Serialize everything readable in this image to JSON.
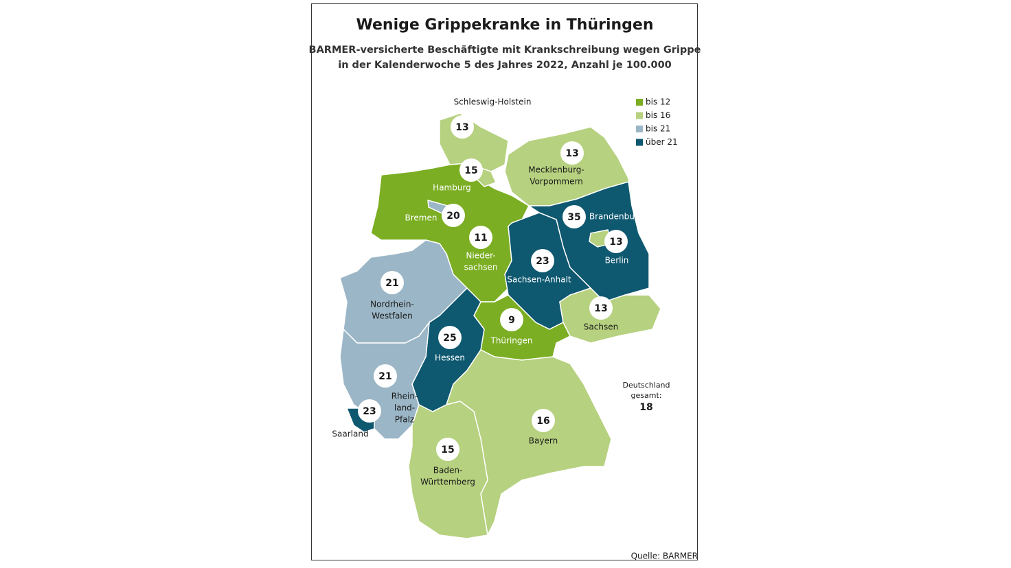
{
  "header": {
    "title": "Wenige Grippekranke in Thüringen",
    "subtitle": [
      "BARMER-versicherte Beschäftigte mit Krankschreibung wegen Grippe",
      "in der Kalenderwoche 5 des Jahres 2022, Anzahl je 100.000"
    ]
  },
  "legend": [
    {
      "label": "bis 12",
      "color": "#7bae22"
    },
    {
      "label": "bis 16",
      "color": "#b6d17f"
    },
    {
      "label": "bis 21",
      "color": "#9bb6c6"
    },
    {
      "label": "über 21",
      "color": "#0e5870"
    }
  ],
  "regions": [
    {
      "name": [
        "Schleswig-Holstein"
      ],
      "value": 13,
      "color": "#b6d17f"
    },
    {
      "name": [
        "Mecklenburg-",
        "Vorpommern"
      ],
      "value": 13,
      "color": "#b6d17f"
    },
    {
      "name": [
        "Hamburg"
      ],
      "value": 15,
      "color": "#b6d17f"
    },
    {
      "name": [
        "Bremen"
      ],
      "value": 20,
      "color": "#9bb6c6"
    },
    {
      "name": [
        "Nieder-",
        "sachsen"
      ],
      "value": 11,
      "color": "#7bae22"
    },
    {
      "name": [
        "Brandenburg"
      ],
      "value": 35,
      "color": "#0e5870"
    },
    {
      "name": [
        "Berlin"
      ],
      "value": 13,
      "color": "#b6d17f"
    },
    {
      "name": [
        "Sachsen-Anhalt"
      ],
      "value": 23,
      "color": "#0e5870"
    },
    {
      "name": [
        "Sachsen"
      ],
      "value": 13,
      "color": "#b6d17f"
    },
    {
      "name": [
        "Thüringen"
      ],
      "value": 9,
      "color": "#7bae22"
    },
    {
      "name": [
        "Nordrhein-",
        "Westfalen"
      ],
      "value": 21,
      "color": "#9bb6c6"
    },
    {
      "name": [
        "Hessen"
      ],
      "value": 25,
      "color": "#0e5870"
    },
    {
      "name": [
        "Rhein-",
        "land-",
        "Pfalz"
      ],
      "value": 21,
      "color": "#9bb6c6"
    },
    {
      "name": [
        "Saarland"
      ],
      "value": 23,
      "color": "#0e5870"
    },
    {
      "name": [
        "Bayern"
      ],
      "value": 16,
      "color": "#b6d17f"
    },
    {
      "name": [
        "Baden-",
        "Württemberg"
      ],
      "value": 15,
      "color": "#b6d17f"
    }
  ],
  "total": {
    "label": [
      "Deutschland",
      "gesamt:"
    ],
    "value": 18
  },
  "source": "Quelle: BARMER"
}
